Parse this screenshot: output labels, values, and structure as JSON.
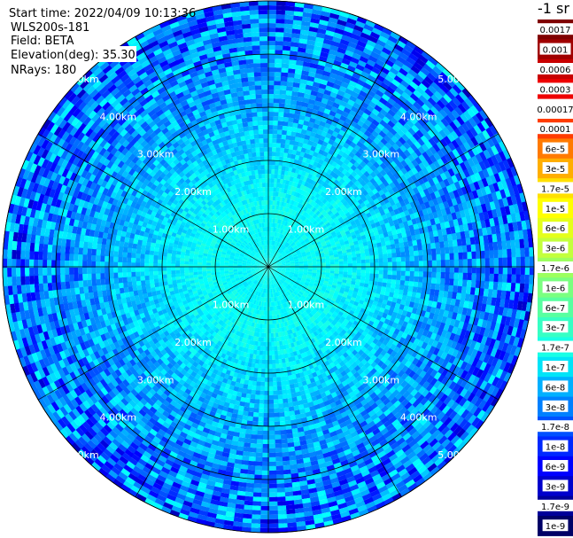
{
  "header": {
    "start_time": "Start time: 2022/04/09 10:13:36",
    "instrument": "WLS200s-181",
    "field": "Field: BETA",
    "elevation": "Elevation(deg): 35.30",
    "nrays": "NRays: 180"
  },
  "colorbar": {
    "unit": "-1 sr",
    "labels": [
      "0.0017",
      "0.001",
      "0.0006",
      "0.0003",
      "0.00017",
      "0.0001",
      "6e-5",
      "3e-5",
      "1.7e-5",
      "1e-5",
      "6e-6",
      "3e-6",
      "1.7e-6",
      "1e-6",
      "6e-7",
      "3e-7",
      "1.7e-7",
      "1e-7",
      "6e-8",
      "3e-8",
      "1.7e-8",
      "1e-8",
      "6e-9",
      "3e-9",
      "1.7e-9",
      "1e-9"
    ],
    "colors": [
      "#7f0000",
      "#a00000",
      "#c80000",
      "#ee0000",
      "#ffffff",
      "#ff3c00",
      "#ff7a00",
      "#ffae00",
      "#ffe000",
      "#ffff00",
      "#e4ff1a",
      "#c3ff3c",
      "#9cff5f",
      "#7aff80",
      "#58ffa0",
      "#37ffc4",
      "#18ffe6",
      "#00e4f8",
      "#00b0ff",
      "#0080ff",
      "#0050ff",
      "#0028ff",
      "#0000ff",
      "#0000cc",
      "#000099",
      "#000066"
    ]
  },
  "chart_data": {
    "type": "ppi-scan",
    "field": "BETA",
    "elevation_deg": 35.3,
    "n_rays": 180,
    "range_rings_km": [
      1,
      2,
      3,
      4,
      5
    ],
    "ring_labels": [
      "1.00km",
      "2.00km",
      "3.00km",
      "4.00km",
      "5.00km"
    ],
    "max_range_km": 5.0,
    "azimuth_lines_deg": [
      0,
      30,
      60,
      90,
      120,
      150,
      180,
      210,
      240,
      270,
      300,
      330
    ],
    "range_profile": [
      {
        "range_km": 0.0,
        "value": 3e-07
      },
      {
        "range_km": 0.5,
        "value": 2e-07
      },
      {
        "range_km": 1.0,
        "value": 2.5e-07
      },
      {
        "range_km": 1.5,
        "value": 2e-07
      },
      {
        "range_km": 2.0,
        "value": 1.5e-07
      },
      {
        "range_km": 2.5,
        "value": 1e-07
      },
      {
        "range_km": 3.0,
        "value": 7e-08
      },
      {
        "range_km": 3.5,
        "value": 5e-08
      },
      {
        "range_km": 4.0,
        "value": 4e-08
      },
      {
        "range_km": 4.5,
        "value": 3e-08
      },
      {
        "range_km": 5.0,
        "value": 2.5e-08
      }
    ],
    "colorscale": "jet",
    "value_range": [
      1e-09,
      0.0017
    ]
  }
}
